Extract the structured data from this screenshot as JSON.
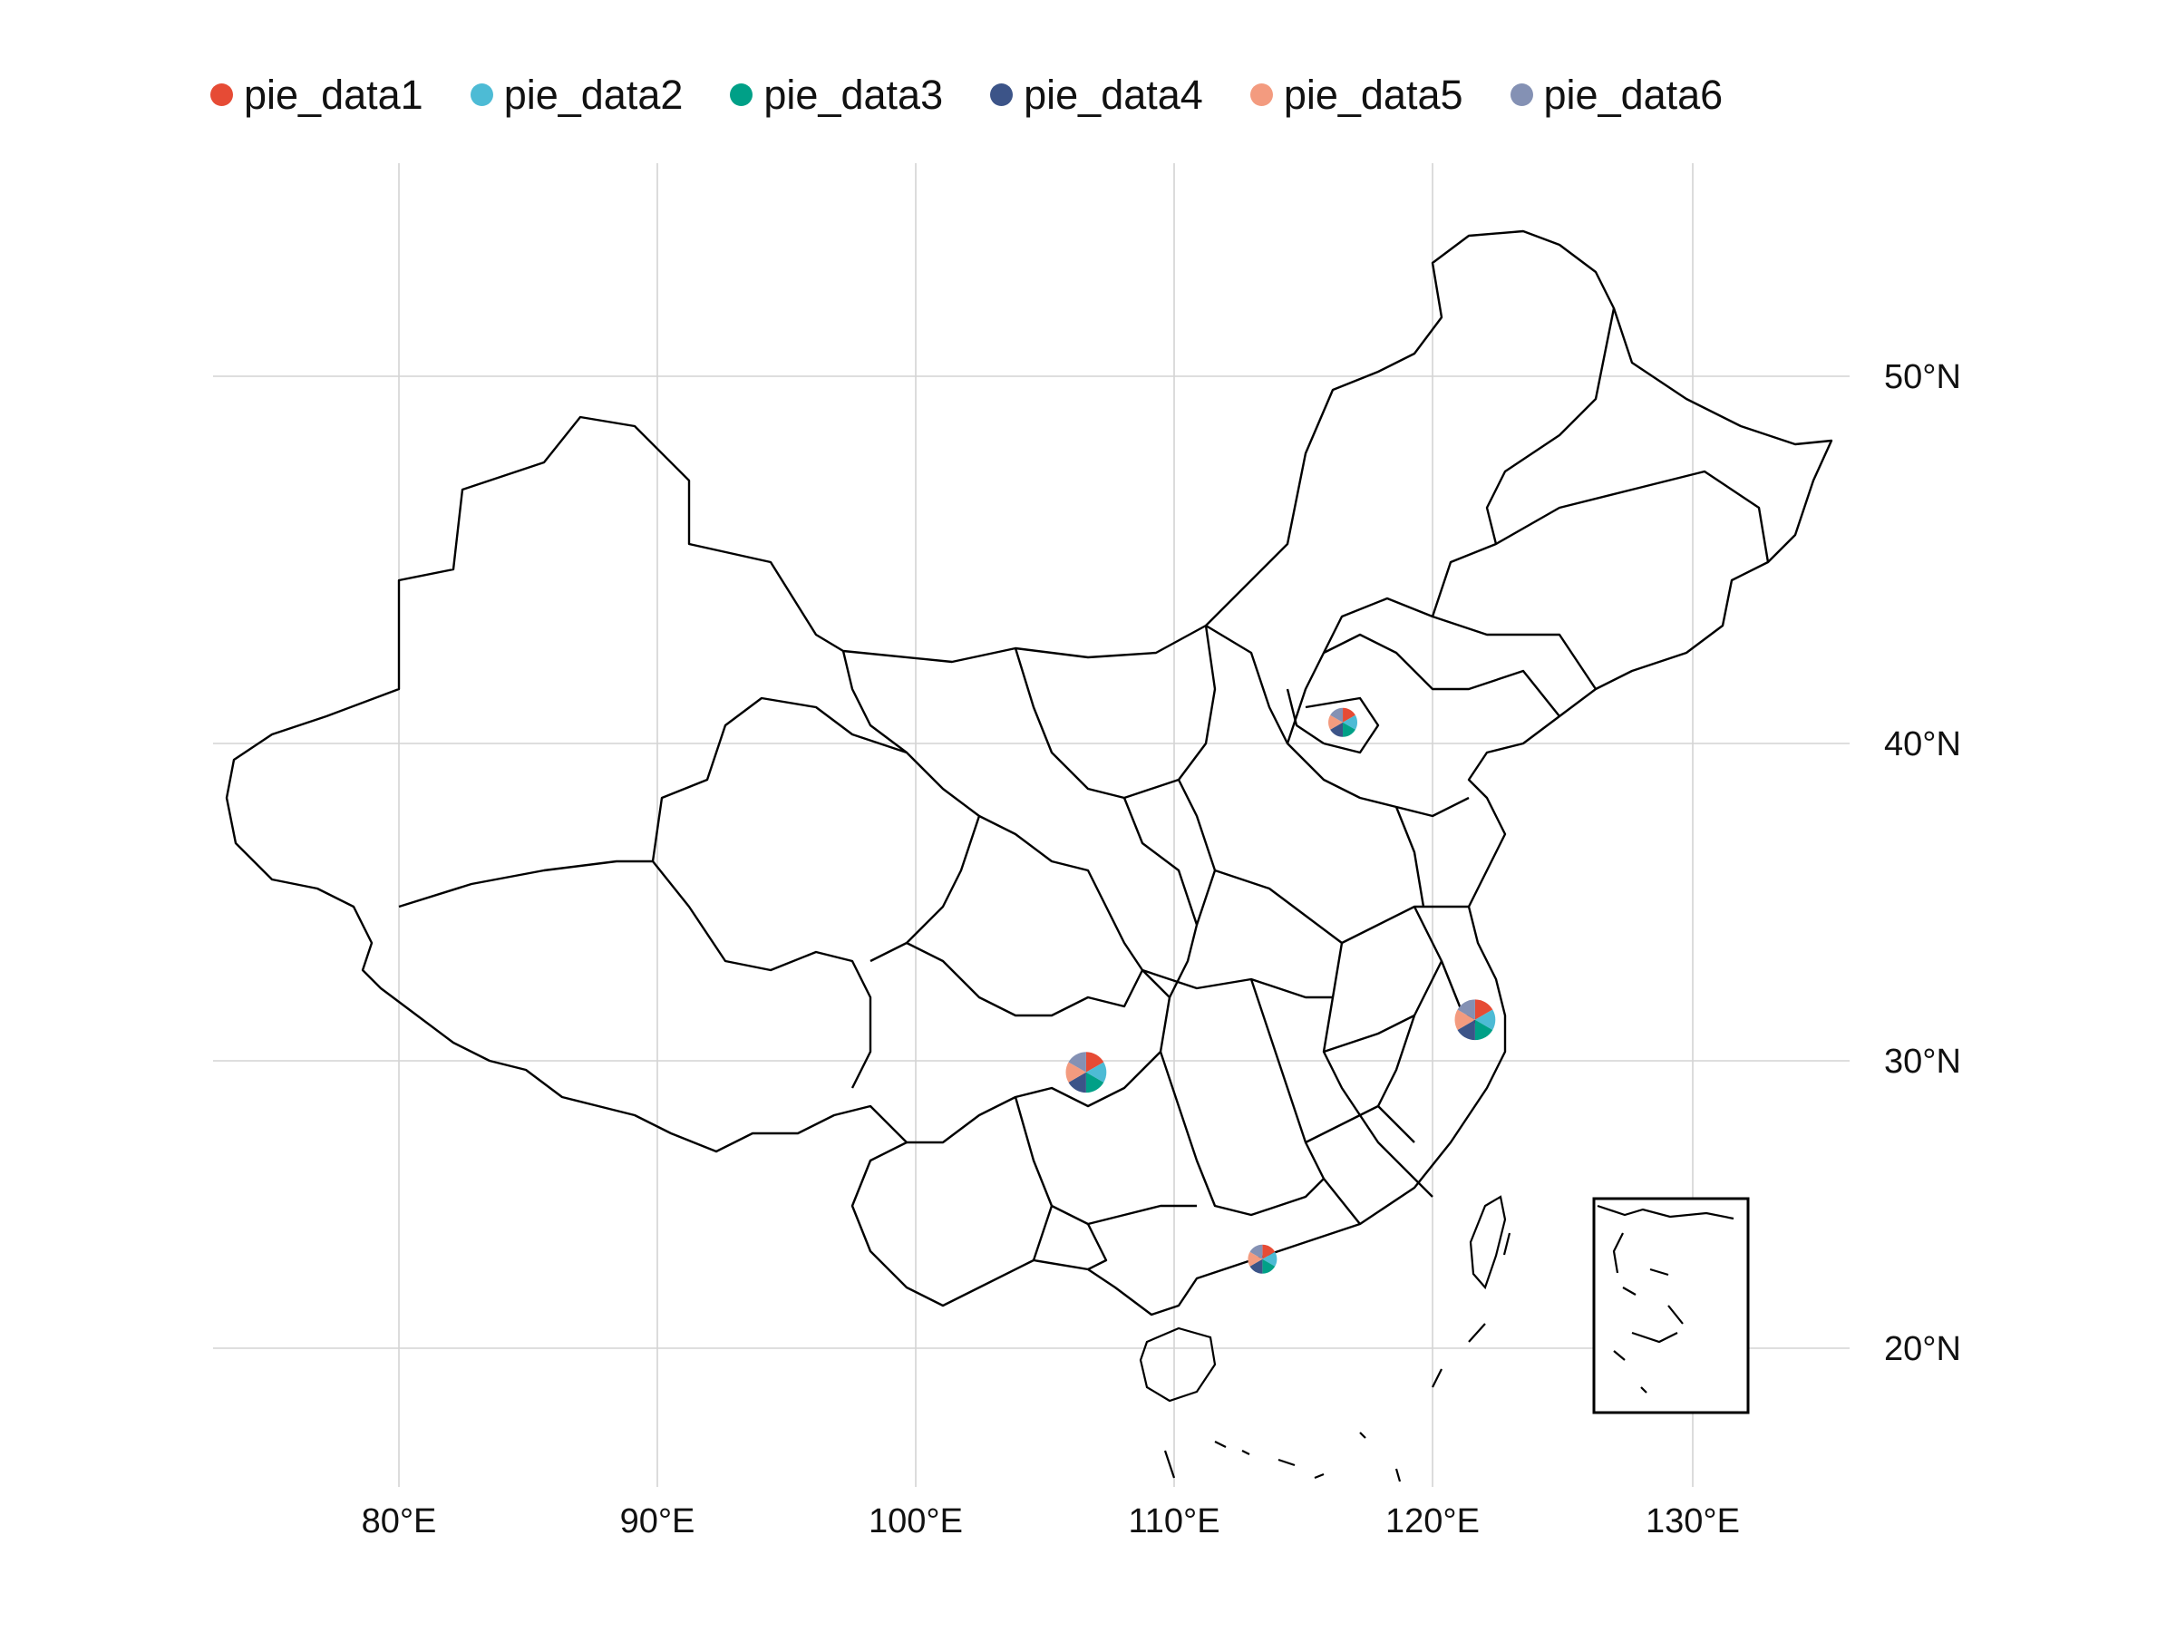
{
  "legend": {
    "items": [
      {
        "label": "pie_data1",
        "color": "#E64B35"
      },
      {
        "label": "pie_data2",
        "color": "#4DBBD5"
      },
      {
        "label": "pie_data3",
        "color": "#00A087"
      },
      {
        "label": "pie_data4",
        "color": "#3C5488"
      },
      {
        "label": "pie_data5",
        "color": "#F39B7F"
      },
      {
        "label": "pie_data6",
        "color": "#8491B4"
      }
    ]
  },
  "axes": {
    "x_ticks": [
      "80°E",
      "90°E",
      "100°E",
      "110°E",
      "120°E",
      "130°E"
    ],
    "y_ticks": [
      "20°N",
      "30°N",
      "40°N",
      "50°N"
    ]
  },
  "chart_data": {
    "type": "pie-on-map",
    "projection": "lon-lat",
    "xlim": [
      73,
      135
    ],
    "ylim": [
      16,
      54
    ],
    "grid": true,
    "legend_position": "top",
    "series_names": [
      "pie_data1",
      "pie_data2",
      "pie_data3",
      "pie_data4",
      "pie_data5",
      "pie_data6"
    ],
    "pies": [
      {
        "lon": 116.4,
        "lat": 39.9,
        "size": 1.0,
        "values": [
          1,
          1,
          1,
          1,
          1,
          1
        ]
      },
      {
        "lon": 121.5,
        "lat": 31.2,
        "size": 1.4,
        "values": [
          1,
          1,
          1,
          1,
          1,
          1
        ]
      },
      {
        "lon": 106.5,
        "lat": 29.6,
        "size": 1.4,
        "values": [
          1,
          1,
          1,
          1,
          1,
          1
        ]
      },
      {
        "lon": 113.3,
        "lat": 23.1,
        "size": 1.0,
        "values": [
          1,
          1,
          1,
          1,
          1,
          1
        ]
      }
    ]
  }
}
